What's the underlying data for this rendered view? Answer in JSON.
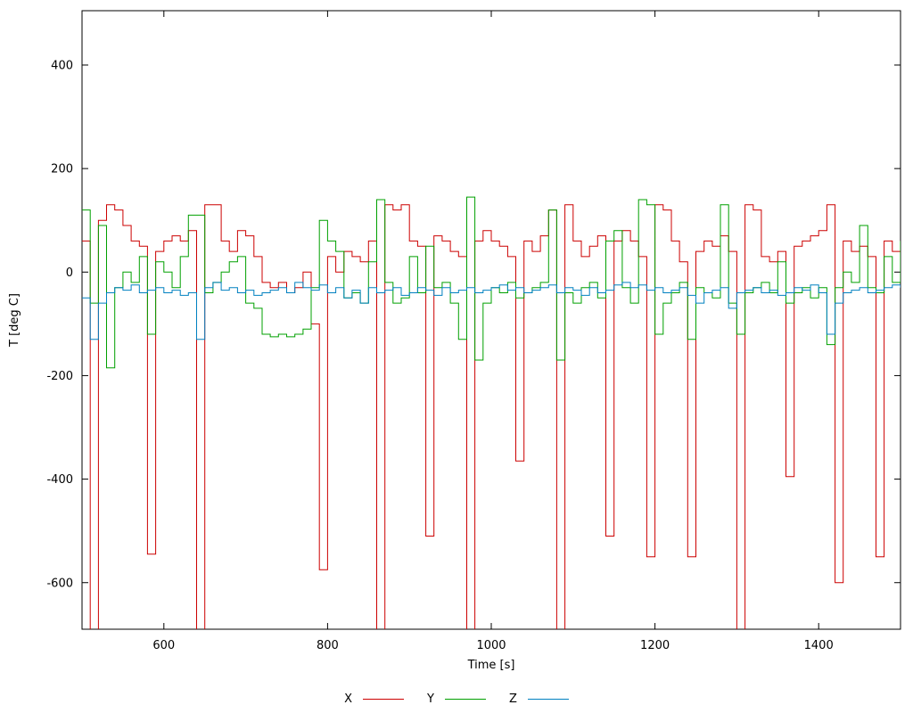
{
  "chart_data": {
    "type": "line",
    "style": "steps",
    "title": "",
    "xlabel": "Time [s]",
    "ylabel": "T [deg C]",
    "xlim": [
      500,
      1500
    ],
    "ylim": [
      -690,
      505
    ],
    "xticks": [
      600,
      800,
      1000,
      1200,
      1400
    ],
    "yticks": [
      -600,
      -400,
      -200,
      0,
      200,
      400
    ],
    "grid": false,
    "legend_position": "bottom-center",
    "background": "#ffffff",
    "axis_color": "#000000",
    "x": [
      500,
      510,
      520,
      530,
      540,
      550,
      560,
      570,
      580,
      590,
      600,
      610,
      620,
      630,
      640,
      650,
      660,
      670,
      680,
      690,
      700,
      710,
      720,
      730,
      740,
      750,
      760,
      770,
      780,
      790,
      800,
      810,
      820,
      830,
      840,
      850,
      860,
      870,
      880,
      890,
      900,
      910,
      920,
      930,
      940,
      950,
      960,
      970,
      980,
      990,
      1000,
      1010,
      1020,
      1030,
      1040,
      1050,
      1060,
      1070,
      1080,
      1090,
      1100,
      1110,
      1120,
      1130,
      1140,
      1150,
      1160,
      1170,
      1180,
      1190,
      1200,
      1210,
      1220,
      1230,
      1240,
      1250,
      1260,
      1270,
      1280,
      1290,
      1300,
      1310,
      1320,
      1330,
      1340,
      1350,
      1360,
      1370,
      1380,
      1390,
      1400,
      1410,
      1420,
      1430,
      1440,
      1450,
      1460,
      1470,
      1480,
      1490,
      1500
    ],
    "series": [
      {
        "name": "X",
        "color": "#cc0000",
        "values": [
          60,
          -700,
          100,
          130,
          120,
          90,
          60,
          50,
          -545,
          40,
          60,
          70,
          60,
          80,
          -700,
          130,
          130,
          60,
          40,
          80,
          70,
          30,
          -20,
          -30,
          -20,
          -40,
          -30,
          0,
          -100,
          -575,
          30,
          0,
          40,
          30,
          20,
          60,
          -700,
          130,
          120,
          130,
          60,
          50,
          -510,
          70,
          60,
          40,
          30,
          -700,
          60,
          80,
          60,
          50,
          30,
          -365,
          60,
          40,
          70,
          120,
          -700,
          130,
          60,
          30,
          50,
          70,
          -510,
          60,
          80,
          60,
          30,
          -550,
          130,
          120,
          60,
          20,
          -550,
          40,
          60,
          50,
          70,
          40,
          -700,
          130,
          120,
          30,
          20,
          40,
          -395,
          50,
          60,
          70,
          80,
          130,
          -600,
          60,
          40,
          50,
          30,
          -550,
          60,
          40,
          60
        ]
      },
      {
        "name": "Y",
        "color": "#00a000",
        "values": [
          120,
          -60,
          90,
          -185,
          -30,
          0,
          -20,
          30,
          -120,
          20,
          0,
          -30,
          30,
          110,
          110,
          -40,
          -20,
          0,
          20,
          30,
          -60,
          -70,
          -120,
          -125,
          -120,
          -125,
          -120,
          -110,
          -30,
          100,
          60,
          40,
          -50,
          -40,
          -60,
          20,
          140,
          -20,
          -60,
          -50,
          30,
          -40,
          50,
          -30,
          -20,
          -60,
          -130,
          145,
          -170,
          -60,
          -30,
          -40,
          -20,
          -50,
          -40,
          -30,
          -20,
          120,
          -170,
          -40,
          -60,
          -30,
          -20,
          -50,
          60,
          80,
          -30,
          -60,
          140,
          130,
          -120,
          -60,
          -40,
          -20,
          -130,
          -30,
          -40,
          -50,
          130,
          -60,
          -120,
          -40,
          -30,
          -20,
          -40,
          20,
          -60,
          -40,
          -30,
          -50,
          -30,
          -140,
          -30,
          0,
          -20,
          90,
          -30,
          -40,
          30,
          -20,
          60
        ]
      },
      {
        "name": "Z",
        "color": "#0080c0",
        "values": [
          -50,
          -130,
          -60,
          -40,
          -30,
          -35,
          -25,
          -40,
          -35,
          -30,
          -40,
          -35,
          -45,
          -40,
          -130,
          -30,
          -20,
          -35,
          -30,
          -40,
          -35,
          -45,
          -40,
          -35,
          -30,
          -40,
          -20,
          -30,
          -35,
          -25,
          -40,
          -30,
          -50,
          -35,
          -60,
          -30,
          -40,
          -35,
          -30,
          -45,
          -40,
          -30,
          -35,
          -45,
          -30,
          -40,
          -35,
          -30,
          -40,
          -35,
          -30,
          -25,
          -35,
          -30,
          -40,
          -35,
          -30,
          -25,
          -40,
          -30,
          -35,
          -45,
          -30,
          -40,
          -35,
          -25,
          -20,
          -30,
          -25,
          -35,
          -30,
          -40,
          -35,
          -30,
          -45,
          -60,
          -40,
          -35,
          -30,
          -70,
          -40,
          -35,
          -30,
          -40,
          -35,
          -45,
          -40,
          -30,
          -35,
          -25,
          -40,
          -120,
          -60,
          -40,
          -35,
          -30,
          -40,
          -35,
          -30,
          -25,
          -30
        ]
      }
    ]
  }
}
